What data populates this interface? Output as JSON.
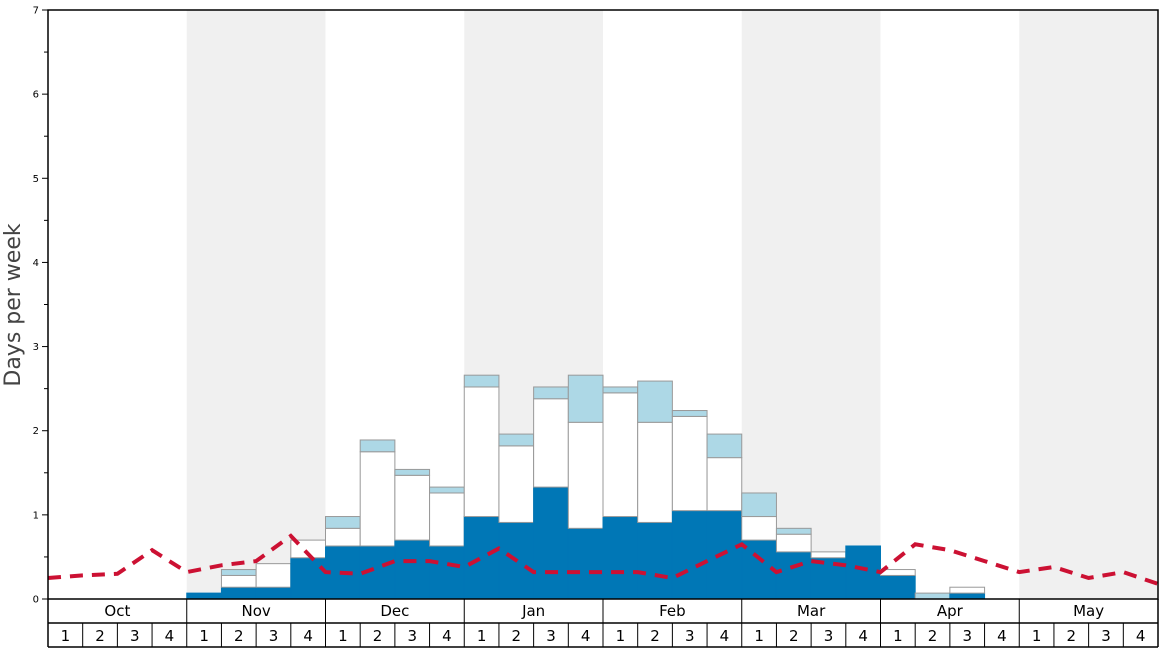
{
  "chart_data": {
    "type": "bar",
    "ylabel": "Days per week",
    "ylim": [
      0,
      7
    ],
    "yticks": [
      "0",
      "1",
      "2",
      "3",
      "4",
      "5",
      "6",
      "7"
    ],
    "months": [
      "Oct",
      "Nov",
      "Dec",
      "Jan",
      "Feb",
      "Mar",
      "Apr",
      "May"
    ],
    "weeks": [
      "1",
      "2",
      "3",
      "4"
    ],
    "colors": {
      "base": "#0077b6",
      "middle": "#ffffff",
      "top": "#add8e6",
      "line": "#cc1133",
      "shade": "#f0f0f0"
    },
    "series": [
      {
        "name": "dark blue",
        "values": [
          0,
          0,
          0,
          0,
          0.07,
          0.14,
          0.14,
          0.49,
          0.63,
          0.63,
          0.7,
          0.63,
          0.98,
          0.91,
          1.33,
          0.84,
          0.98,
          0.91,
          1.05,
          1.05,
          0.7,
          0.56,
          0.49,
          0.63,
          0.28,
          0,
          0.07,
          0,
          0,
          0,
          0,
          0
        ]
      },
      {
        "name": "white",
        "values": [
          0,
          0,
          0,
          0,
          0,
          0.14,
          0.28,
          0.21,
          0.21,
          1.12,
          0.77,
          0.63,
          1.54,
          0.91,
          1.05,
          1.26,
          1.47,
          1.19,
          1.12,
          0.63,
          0.28,
          0.21,
          0.07,
          0,
          0.07,
          0,
          0.07,
          0,
          0,
          0,
          0,
          0
        ]
      },
      {
        "name": "light blue",
        "values": [
          0,
          0,
          0,
          0,
          0,
          0.07,
          0,
          0,
          0.14,
          0.14,
          0.07,
          0.07,
          0.14,
          0.14,
          0.14,
          0.56,
          0.07,
          0.49,
          0.07,
          0.28,
          0.28,
          0.07,
          0,
          0,
          0,
          0.07,
          0,
          0,
          0,
          0,
          0,
          0
        ]
      },
      {
        "name": "dashed line",
        "values": [
          0.25,
          0.28,
          0.3,
          0.58,
          0.32,
          0.4,
          0.45,
          0.75,
          0.32,
          0.3,
          0.45,
          0.45,
          0.38,
          0.6,
          0.32,
          0.32,
          0.32,
          0.32,
          0.25,
          0.45,
          0.65,
          0.32,
          0.45,
          0.4,
          0.32,
          0.65,
          0.58,
          0.45,
          0.32,
          0.38,
          0.25,
          0.32,
          0.18
        ]
      }
    ]
  }
}
